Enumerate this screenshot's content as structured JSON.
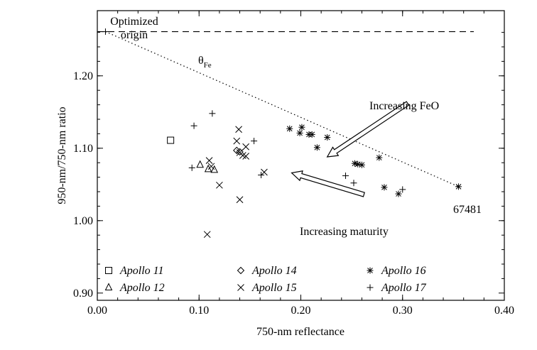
{
  "chart_data": {
    "type": "scatter",
    "xlabel": "750-nm reflectance",
    "ylabel": "950-nm/750-nm ratio",
    "xlim": [
      0.0,
      0.4
    ],
    "ylim": [
      0.89,
      1.29
    ],
    "xticks": [
      0.0,
      0.1,
      0.2,
      0.3,
      0.4
    ],
    "xtick_labels": [
      "0.00",
      "0.10",
      "0.20",
      "0.30",
      "0.40"
    ],
    "yticks": [
      0.9,
      1.0,
      1.1,
      1.2
    ],
    "ytick_labels": [
      "0.90",
      "1.00",
      "1.10",
      "1.20"
    ],
    "grid": false,
    "legend_position": "bottom",
    "series": [
      {
        "name": "Apollo 11",
        "marker": "square",
        "points": [
          [
            0.072,
            1.111
          ]
        ]
      },
      {
        "name": "Apollo 12",
        "marker": "triangle",
        "points": [
          [
            0.101,
            1.077
          ],
          [
            0.109,
            1.071
          ],
          [
            0.115,
            1.07
          ]
        ]
      },
      {
        "name": "Apollo 14",
        "marker": "diamond",
        "points": [
          [
            0.137,
            1.097
          ],
          [
            0.14,
            1.095
          ]
        ]
      },
      {
        "name": "Apollo 15",
        "marker": "x",
        "points": [
          [
            0.11,
            1.083
          ],
          [
            0.112,
            1.075
          ],
          [
            0.12,
            1.049
          ],
          [
            0.137,
            1.11
          ],
          [
            0.139,
            1.126
          ],
          [
            0.14,
            1.094
          ],
          [
            0.143,
            1.09
          ],
          [
            0.146,
            1.102
          ],
          [
            0.146,
            1.089
          ],
          [
            0.164,
            1.067
          ],
          [
            0.14,
            1.029
          ],
          [
            0.108,
            0.981
          ]
        ]
      },
      {
        "name": "Apollo 16",
        "marker": "asterisk",
        "points": [
          [
            0.189,
            1.127
          ],
          [
            0.199,
            1.121
          ],
          [
            0.201,
            1.129
          ],
          [
            0.208,
            1.119
          ],
          [
            0.211,
            1.119
          ],
          [
            0.216,
            1.101
          ],
          [
            0.226,
            1.115
          ],
          [
            0.253,
            1.079
          ],
          [
            0.256,
            1.078
          ],
          [
            0.26,
            1.077
          ],
          [
            0.277,
            1.087
          ],
          [
            0.282,
            1.046
          ],
          [
            0.296,
            1.037
          ],
          [
            0.355,
            1.047
          ]
        ]
      },
      {
        "name": "Apollo 17",
        "marker": "plus",
        "points": [
          [
            0.008,
            1.261
          ],
          [
            0.095,
            1.131
          ],
          [
            0.093,
            1.073
          ],
          [
            0.113,
            1.148
          ],
          [
            0.154,
            1.11
          ],
          [
            0.161,
            1.063
          ],
          [
            0.244,
            1.062
          ],
          [
            0.252,
            1.052
          ],
          [
            0.3,
            1.043
          ]
        ]
      }
    ],
    "annotations": {
      "origin_label_line1": "Optimized",
      "origin_label_line2": "origin",
      "theta_symbol": "θ",
      "theta_subscript": "Fe",
      "feo_label": "Increasing FeO",
      "maturity_label": "Increasing maturity",
      "sample_label": "67481"
    },
    "reference_lines": {
      "dashed_y": 1.261,
      "dashed_x_range": [
        0.0,
        0.37
      ],
      "dotted_from": [
        0.008,
        1.261
      ],
      "dotted_to": [
        0.355,
        1.047
      ]
    },
    "arrows": {
      "feo": {
        "from": [
          0.305,
          1.162
        ],
        "to": [
          0.226,
          1.088
        ]
      },
      "maturity": {
        "from": [
          0.262,
          1.036
        ],
        "to": [
          0.191,
          1.066
        ]
      }
    },
    "colors": {
      "ink": "#000000",
      "background": "#ffffff"
    }
  }
}
